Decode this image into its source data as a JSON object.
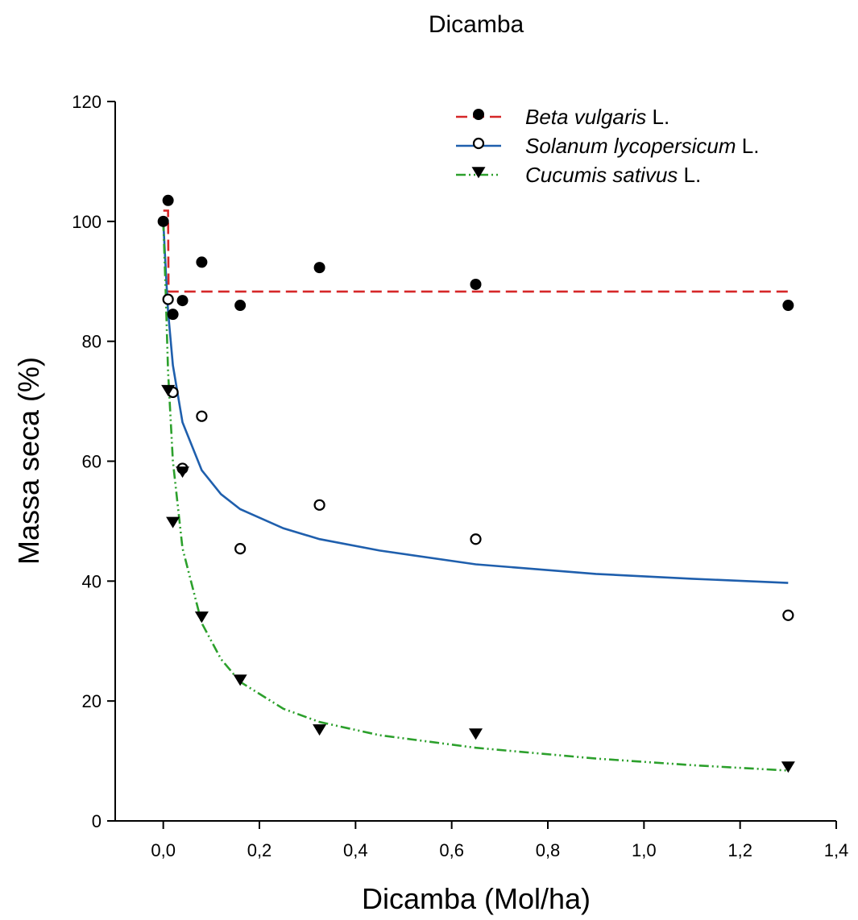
{
  "chart_data": {
    "type": "scatter",
    "title": "Dicamba",
    "xlabel": "Dicamba (Mol/ha)",
    "ylabel": "Massa seca (%)",
    "xlim": [
      -0.1,
      1.4
    ],
    "ylim": [
      0,
      120
    ],
    "x_ticks": [
      "0,0",
      "0,2",
      "0,4",
      "0,6",
      "0,8",
      "1,0",
      "1,2",
      "1,4"
    ],
    "x_tick_values": [
      0,
      0.2,
      0.4,
      0.6,
      0.8,
      1.0,
      1.2,
      1.4
    ],
    "y_ticks": [
      "0",
      "20",
      "40",
      "60",
      "80",
      "100",
      "120"
    ],
    "y_tick_values": [
      0,
      20,
      40,
      60,
      80,
      100,
      120
    ],
    "grid": false,
    "legend_position": "top-right",
    "series": [
      {
        "name_italic": "Beta vulgaris",
        "name_suffix": " L.",
        "marker": "filled-circle",
        "line_style": "dashed",
        "line_color": "#d62728",
        "points": [
          [
            0,
            100
          ],
          [
            0.01,
            103.5
          ],
          [
            0.02,
            84.5
          ],
          [
            0.04,
            86.8
          ],
          [
            0.08,
            93.2
          ],
          [
            0.16,
            86.0
          ],
          [
            0.325,
            92.3
          ],
          [
            0.65,
            89.5
          ],
          [
            1.3,
            86.0
          ]
        ],
        "fit": [
          [
            0,
            101.8
          ],
          [
            0.01,
            101.8
          ],
          [
            0.011,
            88.3
          ],
          [
            0.02,
            88.3
          ],
          [
            1.3,
            88.3
          ]
        ]
      },
      {
        "name_italic": "Solanum lycopersicum",
        "name_suffix": " L.",
        "marker": "open-circle",
        "line_style": "solid",
        "line_color": "#1f5fad",
        "points": [
          [
            0.01,
            87.0
          ],
          [
            0.02,
            71.5
          ],
          [
            0.04,
            58.8
          ],
          [
            0.08,
            67.5
          ],
          [
            0.16,
            45.4
          ],
          [
            0.325,
            52.7
          ],
          [
            0.65,
            47.0
          ],
          [
            1.3,
            34.3
          ]
        ],
        "fit": [
          [
            0,
            100
          ],
          [
            0.005,
            92
          ],
          [
            0.01,
            85
          ],
          [
            0.02,
            76
          ],
          [
            0.04,
            66.5
          ],
          [
            0.08,
            58.5
          ],
          [
            0.12,
            54.5
          ],
          [
            0.16,
            52.0
          ],
          [
            0.25,
            48.8
          ],
          [
            0.325,
            47.0
          ],
          [
            0.45,
            45.1
          ],
          [
            0.65,
            42.8
          ],
          [
            0.9,
            41.2
          ],
          [
            1.1,
            40.4
          ],
          [
            1.3,
            39.7
          ]
        ]
      },
      {
        "name_italic": "Cucumis sativus",
        "name_suffix": " L.",
        "marker": "filled-triangle-down",
        "line_style": "dash-dot-dot",
        "line_color": "#2ca02c",
        "points": [
          [
            0.01,
            71.8
          ],
          [
            0.02,
            49.8
          ],
          [
            0.04,
            58.2
          ],
          [
            0.08,
            34.0
          ],
          [
            0.16,
            23.5
          ],
          [
            0.325,
            15.2
          ],
          [
            0.65,
            14.5
          ],
          [
            1.3,
            9.0
          ]
        ],
        "fit": [
          [
            0,
            100
          ],
          [
            0.005,
            88
          ],
          [
            0.01,
            75
          ],
          [
            0.02,
            60
          ],
          [
            0.04,
            45.5
          ],
          [
            0.08,
            33.0
          ],
          [
            0.12,
            27.0
          ],
          [
            0.16,
            23.2
          ],
          [
            0.25,
            18.7
          ],
          [
            0.325,
            16.5
          ],
          [
            0.45,
            14.3
          ],
          [
            0.65,
            12.2
          ],
          [
            0.9,
            10.4
          ],
          [
            1.1,
            9.3
          ],
          [
            1.3,
            8.4
          ]
        ]
      }
    ]
  }
}
